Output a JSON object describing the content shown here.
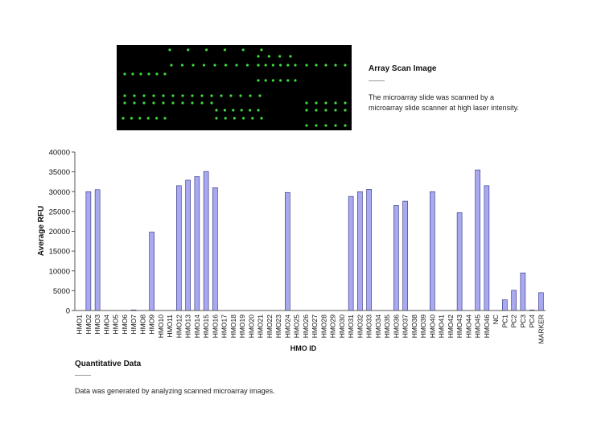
{
  "scan_section": {
    "title": "Array Scan Image",
    "description_lines": [
      "The microarray slide was scanned by a",
      "microarray slide scanner at high laser intensity."
    ]
  },
  "quant_section": {
    "title": "Quantitative Data",
    "description": "Data was generated by analyzing scanned microarray images."
  },
  "colors": {
    "bar_fill": "#a9a9f2",
    "bar_stroke": "#2b2b7a",
    "spot_green": "#3ddc3d",
    "scan_bg": "#000000"
  },
  "chart_data": {
    "type": "bar",
    "xlabel": "HMO ID",
    "ylabel": "Average RFU",
    "ylim": [
      0,
      40000
    ],
    "yticks": [
      0,
      5000,
      10000,
      15000,
      20000,
      25000,
      30000,
      35000,
      40000
    ],
    "grid": false,
    "categories": [
      "HMO1",
      "HMO2",
      "HMO3",
      "HMO4",
      "HMO5",
      "HMO6",
      "HMO7",
      "HMO8",
      "HMO9",
      "HMO10",
      "HMO11",
      "HMO12",
      "HMO13",
      "HMO14",
      "HMO15",
      "HMO16",
      "HMO17",
      "HMO18",
      "HMO19",
      "HMO20",
      "HMO21",
      "HMO22",
      "HMO23",
      "HMO24",
      "HMO25",
      "HMO26",
      "HMO27",
      "HMO28",
      "HMO29",
      "HMO30",
      "HMO31",
      "HMO32",
      "HMO33",
      "HMO34",
      "HMO35",
      "HMO36",
      "HMO37",
      "HMO38",
      "HMO39",
      "HMO40",
      "HMO41",
      "HMO42",
      "HMO43",
      "HMO44",
      "HMO45",
      "HMO46",
      "NC",
      "PC1",
      "PC2",
      "PC3",
      "PC4",
      "MARKER"
    ],
    "values": [
      0,
      30000,
      30500,
      0,
      0,
      0,
      150,
      0,
      19800,
      0,
      0,
      31500,
      32900,
      33800,
      35100,
      31000,
      0,
      0,
      0,
      0,
      0,
      0,
      0,
      29800,
      0,
      0,
      0,
      0,
      0,
      0,
      28800,
      30000,
      30600,
      0,
      0,
      26500,
      27600,
      0,
      0,
      30000,
      0,
      0,
      24700,
      0,
      35500,
      31500,
      0,
      2700,
      5100,
      9500,
      150,
      4500
    ]
  }
}
